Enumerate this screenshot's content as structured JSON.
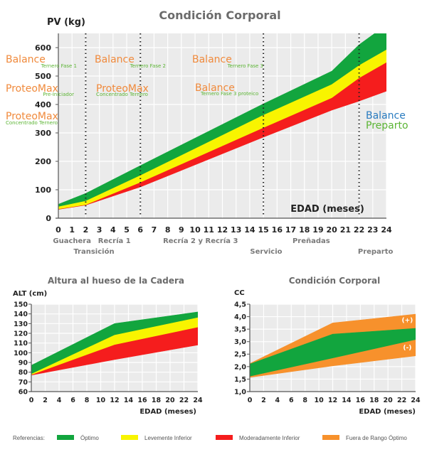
{
  "colors": {
    "optimo": "#12a53e",
    "leve": "#f8f400",
    "moderado": "#f51d1d",
    "fuera": "#f7912c",
    "plot_bg": "#ebebeb",
    "product_orange": "#f08a3c",
    "product_green": "#5cb535",
    "product_blue": "#2a7cc0"
  },
  "chart_data": [
    {
      "id": "main",
      "type": "area",
      "title": "Condición Corporal",
      "ylabel": "PV (kg)",
      "xlabel": "EDAD (meses)",
      "xlim": [
        0,
        24
      ],
      "ylim": [
        0,
        650
      ],
      "xticks": [
        0,
        1,
        2,
        3,
        4,
        5,
        6,
        7,
        8,
        9,
        10,
        11,
        12,
        13,
        14,
        15,
        16,
        17,
        18,
        19,
        20,
        21,
        22,
        23,
        24
      ],
      "yticks": [
        0,
        100,
        200,
        300,
        400,
        500,
        600
      ],
      "grid": true,
      "x": [
        0,
        2,
        6,
        15,
        20,
        22,
        24
      ],
      "series": [
        {
          "name": "Óptimo",
          "color_key": "optimo",
          "upper": [
            49,
            87,
            185,
            402,
            517,
            610,
            680
          ],
          "lower": [
            40,
            60,
            150,
            362,
            470,
            537,
            592
          ]
        },
        {
          "name": "Levemente Inferior",
          "color_key": "leve",
          "upper": [
            40,
            60,
            150,
            362,
            470,
            537,
            592
          ],
          "lower": [
            31,
            46,
            125,
            317,
            422,
            492,
            547
          ]
        },
        {
          "name": "Moderadamente Inferior",
          "color_key": "moderado",
          "upper": [
            31,
            46,
            125,
            317,
            422,
            492,
            547
          ],
          "lower": [
            31,
            46,
            110,
            285,
            380,
            412,
            447
          ]
        }
      ],
      "phase_dividers": [
        2,
        6,
        15,
        22
      ],
      "stages_row1": [
        {
          "label": "Guachera",
          "x": 1
        },
        {
          "label": "Recría 1",
          "x": 4.1
        },
        {
          "label": "Recría 2 y Recría 3",
          "x": 10.4
        },
        {
          "label": "Preñadas",
          "x": 18.5
        }
      ],
      "stages_row2": [
        {
          "label": "Transición",
          "x": 2.6
        },
        {
          "label": "Servicio",
          "x": 15.2
        },
        {
          "label": "Preparto",
          "x": 23.2
        }
      ],
      "annotations": [
        {
          "brand": "Balance",
          "sub": "Ternero Fase 1",
          "brand_color": "product_orange",
          "sub_color": "product_green"
        },
        {
          "brand": "ProteoMax",
          "sub": "Pre-Iniciador",
          "brand_color": "product_orange",
          "sub_color": "product_green"
        },
        {
          "brand": "ProteoMax",
          "sub": "Concentrado Ternero",
          "brand_color": "product_orange",
          "sub_color": "product_green"
        },
        {
          "brand": "Balance",
          "sub": "Ternero Fase 2",
          "brand_color": "product_orange",
          "sub_color": "product_green"
        },
        {
          "brand": "ProteoMax",
          "sub": "Concentrado Ternero",
          "brand_color": "product_orange",
          "sub_color": "product_green"
        },
        {
          "brand": "Balance",
          "sub": "Ternero Fase 3",
          "brand_color": "product_orange",
          "sub_color": "product_green"
        },
        {
          "brand": "Balance",
          "sub": "Ternero Fase 3 proteico",
          "brand_color": "product_orange",
          "sub_color": "product_green"
        },
        {
          "brand": "Balance",
          "sub": "Preparto",
          "brand_color": "product_blue",
          "sub_color": "product_green"
        }
      ]
    },
    {
      "id": "altura",
      "type": "area",
      "title": "Altura al hueso de la Cadera",
      "ylabel": "ALT (cm)",
      "xlabel": "EDAD (meses)",
      "xlim": [
        0,
        24
      ],
      "ylim": [
        60,
        150
      ],
      "xticks": [
        0,
        2,
        4,
        6,
        8,
        10,
        12,
        14,
        16,
        18,
        20,
        22,
        24
      ],
      "yticks": [
        60,
        70,
        80,
        90,
        100,
        110,
        120,
        130,
        140,
        150
      ],
      "grid": true,
      "x": [
        0,
        12,
        24
      ],
      "series": [
        {
          "name": "Óptimo",
          "color_key": "optimo",
          "upper": [
            87,
            130,
            142
          ],
          "lower": [
            78,
            118,
            136
          ]
        },
        {
          "name": "Levemente Inferior",
          "color_key": "leve",
          "upper": [
            78,
            118,
            136
          ],
          "lower": [
            77,
            108,
            126
          ]
        },
        {
          "name": "Moderadamente Inferior",
          "color_key": "moderado",
          "upper": [
            77,
            108,
            126
          ],
          "lower": [
            77,
            93,
            108
          ]
        }
      ]
    },
    {
      "id": "cc",
      "type": "area",
      "title": "Condición Corporal",
      "ylabel": "CC",
      "xlabel": "EDAD (meses)",
      "xlim": [
        0,
        24
      ],
      "ylim": [
        1.0,
        4.5
      ],
      "xticks": [
        0,
        2,
        4,
        6,
        8,
        10,
        12,
        14,
        16,
        18,
        20,
        22,
        24
      ],
      "yticks": [
        "1,0",
        "1,5",
        "2,0",
        "2,5",
        "3,0",
        "3,5",
        "4,0",
        "4,5"
      ],
      "ytick_values": [
        1.0,
        1.5,
        2.0,
        2.5,
        3.0,
        3.5,
        4.0,
        4.5
      ],
      "grid": true,
      "x": [
        0,
        12,
        24
      ],
      "series": [
        {
          "name": "Fuera de Rango Óptimo (+)",
          "color_key": "fuera",
          "upper": [
            2.12,
            3.75,
            4.1
          ],
          "lower": [
            2.1,
            3.3,
            3.53
          ]
        },
        {
          "name": "Óptimo",
          "color_key": "optimo",
          "upper": [
            2.1,
            3.3,
            3.53
          ],
          "lower": [
            1.6,
            2.33,
            3.07
          ]
        },
        {
          "name": "Fuera de Rango Óptimo (-)",
          "color_key": "fuera",
          "upper": [
            1.6,
            2.33,
            3.07
          ],
          "lower": [
            1.57,
            2.03,
            2.43
          ]
        }
      ],
      "band_labels": [
        "(+)",
        "(-)"
      ]
    }
  ],
  "legend": {
    "title": "Referencias:",
    "items": [
      {
        "label": "Óptimo",
        "color_key": "optimo"
      },
      {
        "label": "Levemente Inferior",
        "color_key": "leve"
      },
      {
        "label": "Moderadamente Inferior",
        "color_key": "moderado"
      },
      {
        "label": "Fuera de Rango Óptimo",
        "color_key": "fuera"
      }
    ]
  }
}
